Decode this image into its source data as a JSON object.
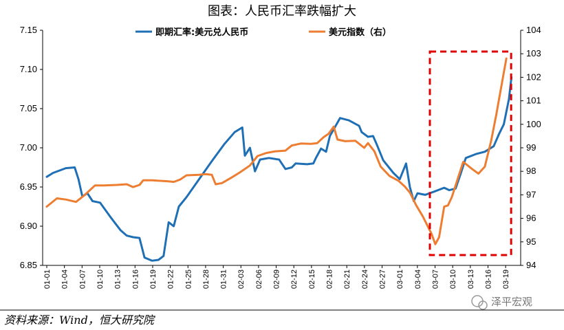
{
  "chart_data": {
    "type": "line",
    "title": "图表：人民币汇率跌幅扩大",
    "source": "资料来源：Wind，恒大研究院",
    "watermark": "泽平宏观",
    "x_tick_labels": [
      "01-01",
      "01-04",
      "01-07",
      "01-10",
      "01-13",
      "01-16",
      "01-19",
      "01-22",
      "01-25",
      "01-28",
      "01-31",
      "02-03",
      "02-06",
      "02-09",
      "02-12",
      "02-15",
      "02-18",
      "02-21",
      "02-24",
      "02-27",
      "03-01",
      "03-04",
      "03-07",
      "03-10",
      "03-13",
      "03-16",
      "03-19"
    ],
    "y_left": {
      "min": 6.85,
      "max": 7.15,
      "ticks": [
        "6.85",
        "6.90",
        "6.95",
        "7.00",
        "7.05",
        "7.10",
        "7.15"
      ]
    },
    "y_right": {
      "min": 94,
      "max": 104,
      "ticks": [
        "94",
        "95",
        "96",
        "97",
        "98",
        "99",
        "100",
        "101",
        "102",
        "103",
        "104"
      ]
    },
    "highlight": {
      "x_from": "03-08",
      "x_to": "03-19",
      "color": "#e00000",
      "style": "dashed"
    },
    "series": [
      {
        "name": "即期汇率:美元兑人民币",
        "axis": "left",
        "color": "#1f6fb5",
        "points": [
          [
            0,
            6.963
          ],
          [
            0.5,
            6.968
          ],
          [
            1.5,
            6.974
          ],
          [
            2.2,
            6.975
          ],
          [
            2.5,
            6.96
          ],
          [
            2.8,
            6.938
          ],
          [
            3.2,
            6.942
          ],
          [
            3.6,
            6.932
          ],
          [
            4.2,
            6.93
          ],
          [
            5,
            6.912
          ],
          [
            5.8,
            6.895
          ],
          [
            6.3,
            6.888
          ],
          [
            6.8,
            6.886
          ],
          [
            7.3,
            6.885
          ],
          [
            7.7,
            6.86
          ],
          [
            8.3,
            6.856
          ],
          [
            8.8,
            6.857
          ],
          [
            9.2,
            6.862
          ],
          [
            9.6,
            6.905
          ],
          [
            10,
            6.9
          ],
          [
            10.4,
            6.925
          ],
          [
            11,
            6.937
          ],
          [
            12,
            6.96
          ],
          [
            13,
            6.983
          ],
          [
            14,
            7.005
          ],
          [
            14.8,
            7.02
          ],
          [
            15.4,
            7.026
          ],
          [
            15.6,
            6.99
          ],
          [
            16,
            7.0
          ],
          [
            16.4,
            6.97
          ],
          [
            16.8,
            6.985
          ],
          [
            17.5,
            6.987
          ],
          [
            18.3,
            6.985
          ],
          [
            18.8,
            6.973
          ],
          [
            19.3,
            6.975
          ],
          [
            19.6,
            6.98
          ],
          [
            20.5,
            6.979
          ],
          [
            21,
            6.98
          ],
          [
            21.2,
            6.987
          ],
          [
            21.6,
            6.999
          ],
          [
            22,
            6.995
          ],
          [
            22.3,
            7.015
          ],
          [
            23.1,
            7.038
          ],
          [
            23.8,
            7.035
          ],
          [
            24.6,
            7.028
          ],
          [
            24.8,
            7.02
          ],
          [
            25.3,
            7.014
          ],
          [
            25.7,
            7.015
          ],
          [
            26,
            7.004
          ],
          [
            26.5,
            6.984
          ],
          [
            27.3,
            6.968
          ],
          [
            27.8,
            6.96
          ],
          [
            28.3,
            6.98
          ],
          [
            28.6,
            6.95
          ],
          [
            28.9,
            6.932
          ],
          [
            29.2,
            6.942
          ],
          [
            29.8,
            6.94
          ],
          [
            30.5,
            6.944
          ],
          [
            31.3,
            6.949
          ],
          [
            31.7,
            6.946
          ],
          [
            32.2,
            6.948
          ],
          [
            32.6,
            6.967
          ],
          [
            33,
            6.987
          ],
          [
            33.8,
            6.992
          ],
          [
            34.5,
            6.995
          ],
          [
            35.2,
            7.002
          ],
          [
            35.6,
            7.017
          ],
          [
            36,
            7.03
          ],
          [
            36.4,
            7.062
          ],
          [
            36.6,
            7.09
          ]
        ]
      },
      {
        "name": "美元指数（右）",
        "axis": "right",
        "color": "#ed7d31",
        "points": [
          [
            0,
            96.5
          ],
          [
            0.8,
            96.85
          ],
          [
            1.5,
            96.8
          ],
          [
            2.3,
            96.7
          ],
          [
            3,
            97.0
          ],
          [
            3.8,
            97.4
          ],
          [
            4.5,
            97.4
          ],
          [
            5.5,
            97.42
          ],
          [
            6.3,
            97.45
          ],
          [
            6.8,
            97.33
          ],
          [
            7.3,
            97.42
          ],
          [
            7.6,
            97.62
          ],
          [
            8.3,
            97.62
          ],
          [
            8.8,
            97.6
          ],
          [
            9.5,
            97.58
          ],
          [
            10,
            97.55
          ],
          [
            10.5,
            97.65
          ],
          [
            11,
            97.83
          ],
          [
            12,
            97.85
          ],
          [
            12.5,
            97.88
          ],
          [
            13,
            97.85
          ],
          [
            13.3,
            97.45
          ],
          [
            13.8,
            97.5
          ],
          [
            14.5,
            97.72
          ],
          [
            15.2,
            97.95
          ],
          [
            16,
            98.25
          ],
          [
            16.6,
            98.65
          ],
          [
            17.3,
            98.78
          ],
          [
            18,
            98.85
          ],
          [
            18.8,
            98.88
          ],
          [
            19.3,
            99.1
          ],
          [
            20,
            99.18
          ],
          [
            20.8,
            99.17
          ],
          [
            21.3,
            99.2
          ],
          [
            21.8,
            99.45
          ],
          [
            22.2,
            99.6
          ],
          [
            22.6,
            99.9
          ],
          [
            22.9,
            99.35
          ],
          [
            23.5,
            99.28
          ],
          [
            24.3,
            99.3
          ],
          [
            25,
            99.0
          ],
          [
            25.3,
            99.2
          ],
          [
            25.8,
            98.85
          ],
          [
            26.3,
            98.2
          ],
          [
            27,
            97.8
          ],
          [
            27.7,
            97.6
          ],
          [
            28.2,
            97.35
          ],
          [
            28.6,
            97.1
          ],
          [
            29.1,
            96.55
          ],
          [
            29.6,
            96.1
          ],
          [
            30.3,
            95.35
          ],
          [
            30.6,
            94.9
          ],
          [
            30.9,
            95.2
          ],
          [
            31.3,
            96.5
          ],
          [
            31.6,
            96.55
          ],
          [
            31.9,
            96.9
          ],
          [
            32.5,
            97.9
          ],
          [
            32.8,
            98.4
          ],
          [
            33.5,
            98.1
          ],
          [
            34,
            97.9
          ],
          [
            34.5,
            98.2
          ],
          [
            35,
            99.3
          ],
          [
            35.4,
            100.4
          ],
          [
            35.8,
            101.6
          ],
          [
            36.2,
            102.8
          ]
        ]
      }
    ]
  }
}
